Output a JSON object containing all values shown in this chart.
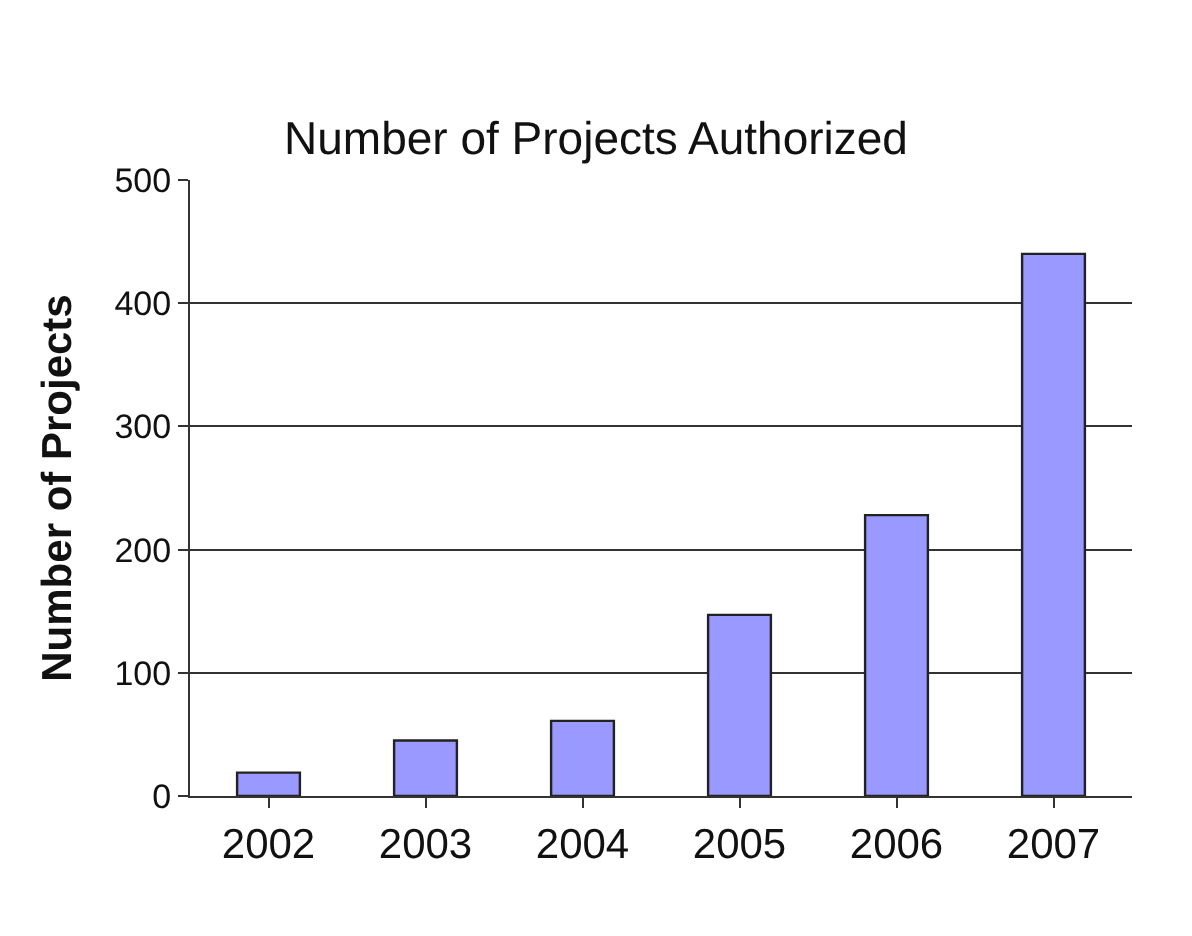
{
  "chart_data": {
    "type": "bar",
    "title": "Number of Projects Authorized",
    "ylabel": "Number of Projects",
    "categories": [
      "2002",
      "2003",
      "2004",
      "2005",
      "2006",
      "2007"
    ],
    "values": [
      19,
      45,
      61,
      147,
      228,
      440
    ],
    "color": "#9999ff",
    "ylim": [
      0,
      500
    ],
    "yticks": [
      0,
      100,
      200,
      300,
      400,
      500
    ],
    "grid": "y",
    "legend": false
  }
}
